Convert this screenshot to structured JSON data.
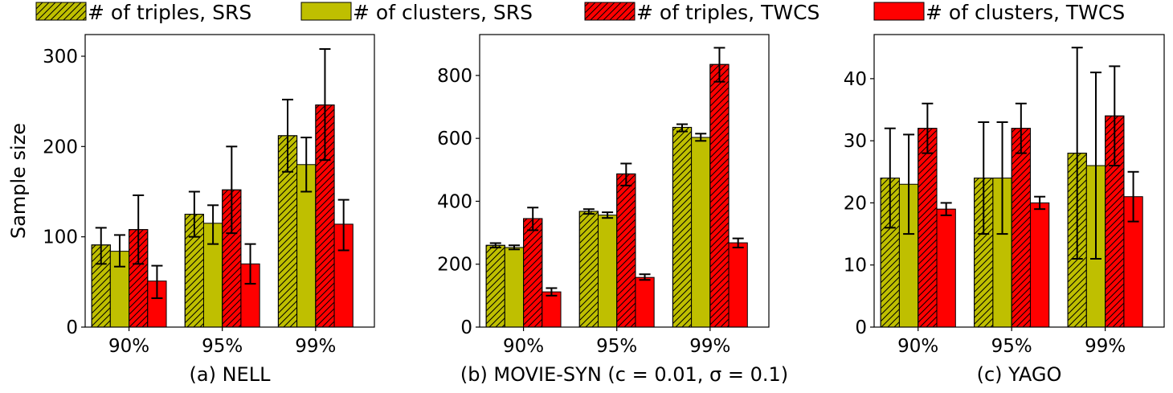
{
  "legend": [
    {
      "label": "# of triples, SRS",
      "color": "#bfbf00",
      "hatch": true
    },
    {
      "label": "# of clusters, SRS",
      "color": "#bfbf00",
      "hatch": false
    },
    {
      "label": "# of triples, TWCS",
      "color": "#ff0000",
      "hatch": true
    },
    {
      "label": "# of clusters, TWCS",
      "color": "#ff0000",
      "hatch": false
    }
  ],
  "chart_data": [
    {
      "type": "bar",
      "title": "(a) NELL",
      "ylabel": "Sample size",
      "categories": [
        "90%",
        "95%",
        "99%"
      ],
      "ylim": [
        0,
        324
      ],
      "yticks": [
        0,
        100,
        200,
        300
      ],
      "series": [
        {
          "name": "# of triples, SRS",
          "values": [
            91,
            125,
            212
          ],
          "err_low": [
            70,
            100,
            172
          ],
          "err_high": [
            110,
            150,
            252
          ]
        },
        {
          "name": "# of clusters, SRS",
          "values": [
            84,
            115,
            180
          ],
          "err_low": [
            67,
            92,
            150
          ],
          "err_high": [
            102,
            135,
            210
          ]
        },
        {
          "name": "# of triples, TWCS",
          "values": [
            108,
            152,
            246
          ],
          "err_low": [
            70,
            104,
            185
          ],
          "err_high": [
            146,
            200,
            308
          ]
        },
        {
          "name": "# of clusters, TWCS",
          "values": [
            51,
            70,
            114
          ],
          "err_low": [
            32,
            48,
            85
          ],
          "err_high": [
            68,
            92,
            141
          ]
        }
      ]
    },
    {
      "type": "bar",
      "title": "(b) MOVIE-SYN (c = 0.01, σ = 0.1)",
      "ylabel": "",
      "categories": [
        "90%",
        "95%",
        "99%"
      ],
      "ylim": [
        0,
        930
      ],
      "yticks": [
        0,
        200,
        400,
        600,
        800
      ],
      "series": [
        {
          "name": "# of triples, SRS",
          "values": [
            260,
            368,
            635
          ],
          "err_low": [
            253,
            360,
            622
          ],
          "err_high": [
            267,
            375,
            645
          ]
        },
        {
          "name": "# of clusters, SRS",
          "values": [
            253,
            356,
            603
          ],
          "err_low": [
            247,
            347,
            592
          ],
          "err_high": [
            260,
            365,
            615
          ]
        },
        {
          "name": "# of triples, TWCS",
          "values": [
            345,
            487,
            835
          ],
          "err_low": [
            308,
            450,
            780
          ],
          "err_high": [
            380,
            520,
            888
          ]
        },
        {
          "name": "# of clusters, TWCS",
          "values": [
            112,
            158,
            268
          ],
          "err_low": [
            100,
            150,
            253
          ],
          "err_high": [
            124,
            168,
            282
          ]
        }
      ]
    },
    {
      "type": "bar",
      "title": "(c) YAGO",
      "ylabel": "",
      "categories": [
        "90%",
        "95%",
        "99%"
      ],
      "ylim": [
        0,
        47.1
      ],
      "yticks": [
        0,
        10,
        20,
        30,
        40
      ],
      "series": [
        {
          "name": "# of triples, SRS",
          "values": [
            24,
            24,
            28
          ],
          "err_low": [
            16,
            15,
            11
          ],
          "err_high": [
            32,
            33,
            45
          ]
        },
        {
          "name": "# of clusters, SRS",
          "values": [
            23,
            24,
            26
          ],
          "err_low": [
            15,
            15,
            11
          ],
          "err_high": [
            31,
            33,
            41
          ]
        },
        {
          "name": "# of triples, TWCS",
          "values": [
            32,
            32,
            34
          ],
          "err_low": [
            28,
            28,
            26
          ],
          "err_high": [
            36,
            36,
            42
          ]
        },
        {
          "name": "# of clusters, TWCS",
          "values": [
            19,
            20,
            21
          ],
          "err_low": [
            18,
            19,
            17
          ],
          "err_high": [
            20,
            21,
            25
          ]
        }
      ]
    }
  ]
}
